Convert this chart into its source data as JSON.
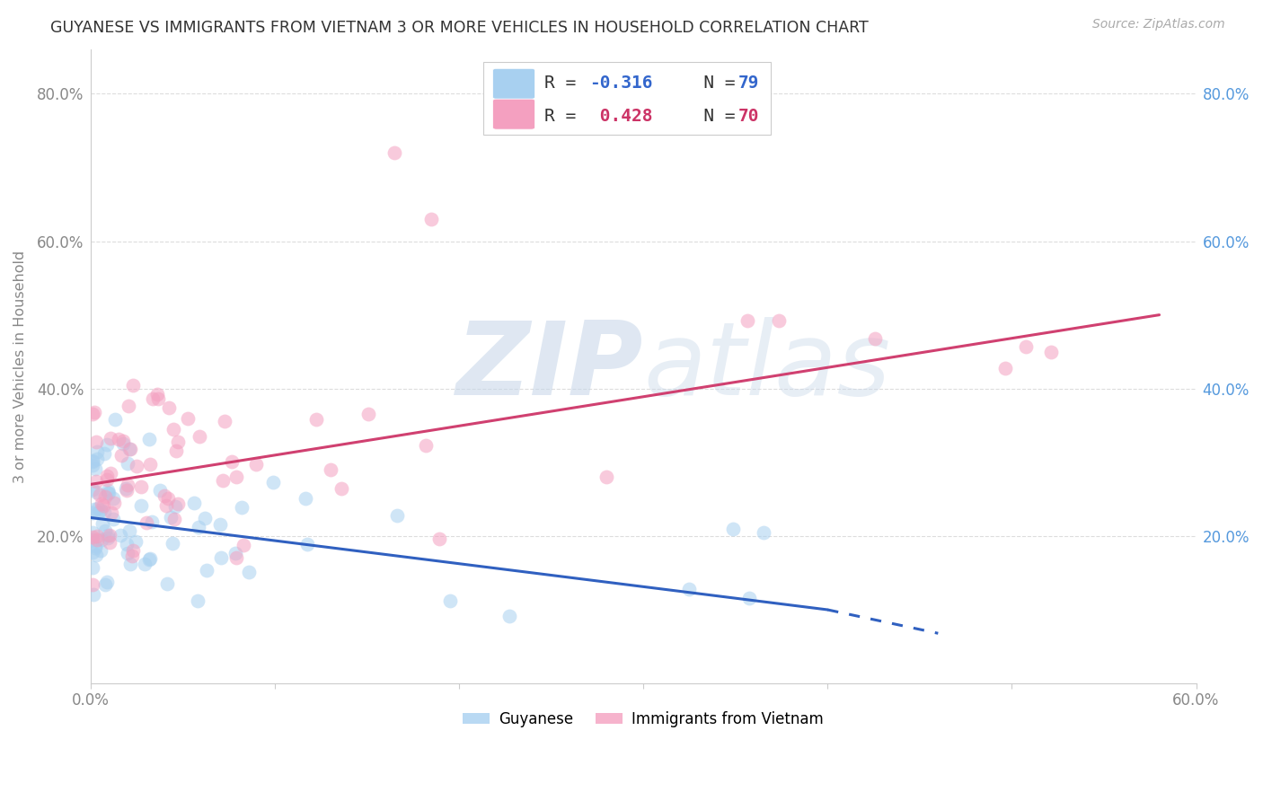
{
  "title": "GUYANESE VS IMMIGRANTS FROM VIETNAM 3 OR MORE VEHICLES IN HOUSEHOLD CORRELATION CHART",
  "source": "Source: ZipAtlas.com",
  "ylabel": "3 or more Vehicles in Household",
  "xlim": [
    0.0,
    0.6
  ],
  "ylim": [
    0.0,
    0.86
  ],
  "color_blue": "#a8d0f0",
  "color_pink": "#f4a0c0",
  "line_blue": "#3060c0",
  "line_pink": "#d04070",
  "watermark_color": "#d0dff0",
  "background": "#ffffff",
  "grid_color": "#dddddd",
  "blue_line_x0": 0.0,
  "blue_line_y0": 0.225,
  "blue_line_x1": 0.4,
  "blue_line_y1": 0.1,
  "pink_line_x0": 0.0,
  "pink_line_y0": 0.27,
  "pink_line_x1": 0.58,
  "pink_line_y1": 0.5
}
